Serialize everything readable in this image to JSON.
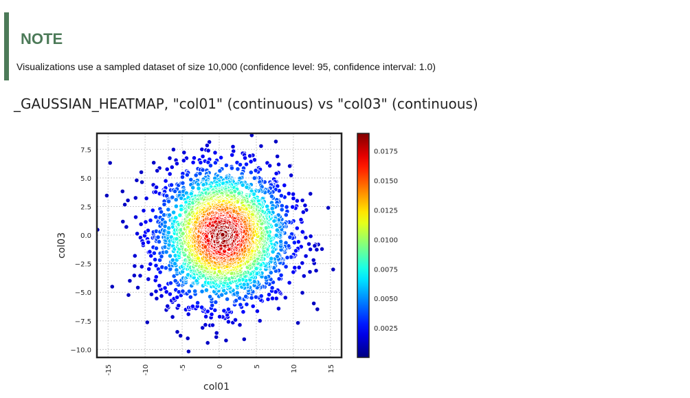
{
  "note": {
    "title": "NOTE",
    "text": "Visualizations use a sampled dataset of size 10,000 (confidence level: 95, confidence interval: 1.0)",
    "accent_color": "#4c7a58"
  },
  "chart_data": {
    "type": "scatter",
    "title": "_GAUSSIAN_HEATMAP, \"col01\" (continuous) vs \"col03\" (continuous)",
    "xlabel": "col01",
    "ylabel": "col03",
    "xlim": [
      -16.5,
      16.5
    ],
    "ylim": [
      -10.7,
      8.9
    ],
    "x_ticks": [
      -15,
      -10,
      -5,
      0,
      5,
      10,
      15
    ],
    "x_tick_labels": [
      "-15",
      "-10",
      "-5",
      "0",
      "5",
      "10",
      "15"
    ],
    "y_ticks": [
      7.5,
      5.0,
      2.5,
      0.0,
      -2.5,
      -5.0,
      -7.5,
      -10.0
    ],
    "y_tick_labels": [
      "7.5",
      "5.0",
      "2.5",
      "0.0",
      "−2.5",
      "−5.0",
      "−7.5",
      "−10.0"
    ],
    "grid": true,
    "colormap": "jet",
    "colorbar": {
      "min": 0.0,
      "max": 0.019,
      "ticks": [
        0.0025,
        0.005,
        0.0075,
        0.01,
        0.0125,
        0.015,
        0.0175
      ],
      "tick_labels": [
        "0.0025",
        "0.0050",
        "0.0075",
        "0.0100",
        "0.0125",
        "0.0150",
        "0.0175"
      ]
    },
    "distribution": {
      "kind": "bivariate-gaussian",
      "mean": [
        0.5,
        0.0
      ],
      "std": [
        4.5,
        3.0
      ],
      "sample_size": 10000
    }
  }
}
